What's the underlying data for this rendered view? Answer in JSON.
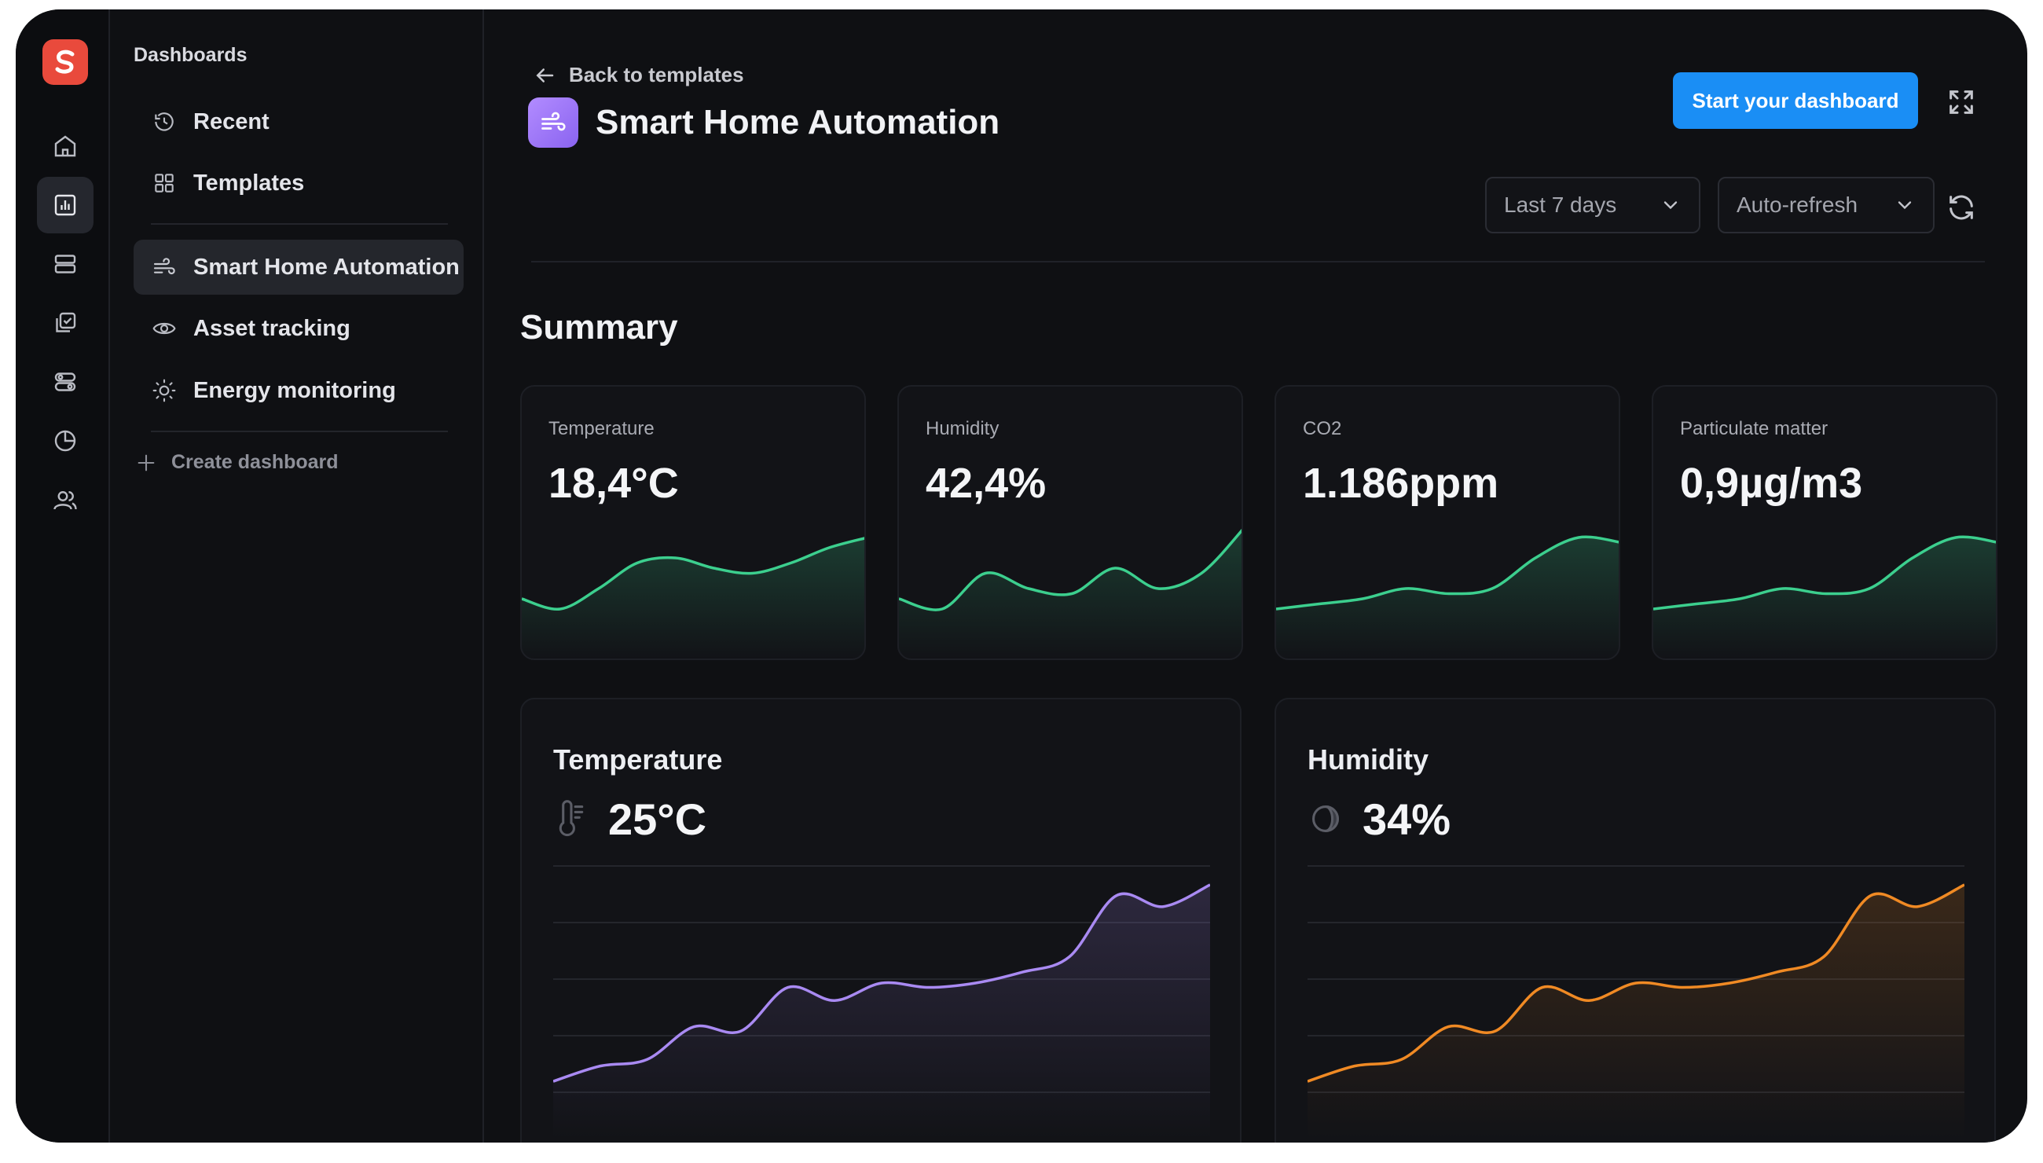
{
  "sidebar": {
    "heading": "Dashboards",
    "items": [
      {
        "label": "Recent",
        "icon": "clock-icon"
      },
      {
        "label": "Templates",
        "icon": "grid-icon"
      },
      {
        "label": "Smart Home Automation",
        "icon": "wind-icon",
        "active": true
      },
      {
        "label": "Asset tracking",
        "icon": "eye-icon"
      },
      {
        "label": "Energy monitoring",
        "icon": "sun-icon"
      }
    ],
    "create_label": "Create dashboard"
  },
  "rail": {
    "icons": [
      "home-icon",
      "bar-chart-icon",
      "database-icon",
      "checklist-icon",
      "toggles-icon",
      "pie-chart-icon",
      "users-icon"
    ],
    "active_index": 1
  },
  "header": {
    "back_label": "Back to templates",
    "title": "Smart Home Automation",
    "start_button": "Start your dashboard",
    "range_select": "Last 7 days",
    "refresh_select": "Auto-refresh"
  },
  "summary": {
    "heading": "Summary",
    "cards": [
      {
        "label": "Temperature",
        "value": "18,4°C"
      },
      {
        "label": "Humidity",
        "value": "42,4%"
      },
      {
        "label": "CO2",
        "value": "1.186ppm"
      },
      {
        "label": "Particulate matter",
        "value": "0,9µg/m3"
      }
    ]
  },
  "panels": [
    {
      "title": "Temperature",
      "value": "25°C",
      "icon": "thermometer-icon"
    },
    {
      "title": "Humidity",
      "value": "34%",
      "icon": "humidity-icon"
    }
  ],
  "colors": {
    "accent": "#1a8ef5",
    "sparkline": "#3ccf8e",
    "temperature_line": "#a98af2",
    "humidity_line": "#f08a24",
    "background": "#0f1013"
  },
  "chart_data": [
    {
      "type": "line",
      "series": [
        {
          "values": [
            0.2,
            0.1,
            0.3,
            0.55,
            0.6,
            0.5,
            0.45,
            0.55,
            0.7,
            0.8
          ]
        }
      ]
    },
    {
      "type": "line",
      "series": [
        {
          "values": [
            0.2,
            0.1,
            0.45,
            0.3,
            0.25,
            0.5,
            0.3,
            0.45,
            0.9
          ]
        }
      ]
    },
    {
      "type": "line",
      "series": [
        {
          "values": [
            0.1,
            0.15,
            0.2,
            0.3,
            0.25,
            0.3,
            0.6,
            0.8,
            0.75
          ]
        }
      ]
    },
    {
      "type": "line",
      "series": [
        {
          "values": [
            0.1,
            0.15,
            0.2,
            0.3,
            0.25,
            0.3,
            0.6,
            0.8,
            0.75
          ]
        }
      ]
    },
    {
      "type": "area",
      "series": [
        {
          "values": [
            0.05,
            0.12,
            0.15,
            0.3,
            0.28,
            0.48,
            0.42,
            0.5,
            0.48,
            0.5,
            0.55,
            0.62,
            0.9,
            0.85,
            0.95
          ]
        }
      ]
    },
    {
      "type": "area",
      "series": [
        {
          "values": [
            0.05,
            0.12,
            0.15,
            0.3,
            0.28,
            0.48,
            0.42,
            0.5,
            0.48,
            0.5,
            0.55,
            0.62,
            0.9,
            0.85,
            0.95
          ]
        }
      ]
    }
  ]
}
